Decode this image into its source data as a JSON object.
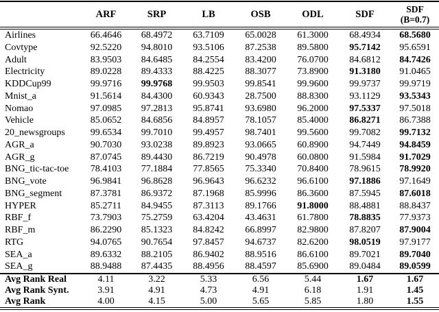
{
  "table": {
    "columns": [
      "ARF",
      "SRP",
      "LB",
      "OSB",
      "ODL",
      "SDF"
    ],
    "last_column": {
      "line1": "SDF",
      "line2": "(B=0.7)"
    },
    "rows": [
      {
        "label": "Airlines",
        "values": [
          "66.4646",
          "68.4972",
          "63.7109",
          "65.0028",
          "61.3000",
          "68.4934",
          "68.5680"
        ],
        "bold": [
          6
        ]
      },
      {
        "label": "Covtype",
        "values": [
          "92.5220",
          "94.8010",
          "93.5106",
          "87.2538",
          "89.5800",
          "95.7142",
          "95.6591"
        ],
        "bold": [
          5
        ]
      },
      {
        "label": "Adult",
        "values": [
          "83.9503",
          "84.6485",
          "84.2554",
          "83.4200",
          "76.0700",
          "84.6812",
          "84.7426"
        ],
        "bold": [
          6
        ]
      },
      {
        "label": "Electricity",
        "values": [
          "89.0228",
          "89.4333",
          "88.4225",
          "88.3077",
          "73.8900",
          "91.3180",
          "91.0465"
        ],
        "bold": [
          5
        ]
      },
      {
        "label": "KDDCup99",
        "values": [
          "99.9716",
          "99.9768",
          "99.9503",
          "99.8541",
          "99.9600",
          "99.9737",
          "99.9719"
        ],
        "bold": [
          1
        ]
      },
      {
        "label": "Mnist_a",
        "values": [
          "91.5614",
          "84.4300",
          "60.9343",
          "28.7500",
          "88.8300",
          "93.1129",
          "93.5343"
        ],
        "bold": [
          6
        ]
      },
      {
        "label": "Nomao",
        "values": [
          "97.0985",
          "97.2813",
          "95.8741",
          "93.6980",
          "96.2000",
          "97.5337",
          "97.5018"
        ],
        "bold": [
          5
        ]
      },
      {
        "label": "Vehicle",
        "values": [
          "85.0652",
          "84.6856",
          "84.8957",
          "78.1057",
          "85.4000",
          "86.8271",
          "86.7388"
        ],
        "bold": [
          5
        ]
      },
      {
        "label": "20_newsgroups",
        "values": [
          "99.6534",
          "99.7010",
          "99.4957",
          "98.7401",
          "99.5600",
          "99.7082",
          "99.7132"
        ],
        "bold": [
          6
        ]
      },
      {
        "label": "AGR_a",
        "values": [
          "90.7030",
          "93.0238",
          "89.8923",
          "93.0665",
          "60.8900",
          "94.7449",
          "94.8459"
        ],
        "bold": [
          6
        ]
      },
      {
        "label": "AGR_g",
        "values": [
          "87.0745",
          "89.4430",
          "86.7219",
          "90.4978",
          "60.0800",
          "91.5984",
          "91.7029"
        ],
        "bold": [
          6
        ]
      },
      {
        "label": "BNG_tic-tac-toe",
        "values": [
          "78.4103",
          "77.1884",
          "77.8565",
          "75.3340",
          "70.8400",
          "78.9615",
          "78.9920"
        ],
        "bold": [
          6
        ]
      },
      {
        "label": "BNG_vote",
        "values": [
          "96.9841",
          "96.8628",
          "96.9643",
          "96.6232",
          "96.6100",
          "97.1886",
          "97.1649"
        ],
        "bold": [
          5
        ]
      },
      {
        "label": "BNG_segment",
        "values": [
          "87.3781",
          "86.9372",
          "87.1968",
          "85.9996",
          "86.3600",
          "87.5945",
          "87.6018"
        ],
        "bold": [
          6
        ]
      },
      {
        "label": "HYPER",
        "values": [
          "85.2711",
          "84.9455",
          "87.3113",
          "89.1766",
          "91.8000",
          "88.4881",
          "88.8437"
        ],
        "bold": [
          4
        ]
      },
      {
        "label": "RBF_f",
        "values": [
          "73.7903",
          "75.2759",
          "63.4204",
          "43.4631",
          "61.7800",
          "78.8835",
          "77.9373"
        ],
        "bold": [
          5
        ]
      },
      {
        "label": "RBF_m",
        "values": [
          "86.2290",
          "85.1323",
          "84.8242",
          "66.8997",
          "82.9800",
          "87.8207",
          "87.9004"
        ],
        "bold": [
          6
        ]
      },
      {
        "label": "RTG",
        "values": [
          "94.0765",
          "90.7654",
          "97.8457",
          "94.6737",
          "82.6200",
          "98.0519",
          "97.9177"
        ],
        "bold": [
          5
        ]
      },
      {
        "label": "SEA_a",
        "values": [
          "89.6332",
          "88.2105",
          "86.9402",
          "88.9516",
          "86.6100",
          "89.7021",
          "89.7040"
        ],
        "bold": [
          6
        ]
      },
      {
        "label": "SEA_g",
        "values": [
          "88.9488",
          "87.4435",
          "88.4956",
          "88.4597",
          "85.6900",
          "89.0484",
          "89.0599"
        ],
        "bold": [
          6
        ]
      }
    ],
    "summary_rows": [
      {
        "label": "Avg Rank Real",
        "values": [
          "4.11",
          "3.22",
          "5.33",
          "6.56",
          "5.44",
          "1.67",
          "1.67"
        ],
        "bold": [
          5,
          6
        ]
      },
      {
        "label": "Avg Rank Synt.",
        "values": [
          "3.91",
          "4.91",
          "4.73",
          "4.91",
          "6.18",
          "1.91",
          "1.45"
        ],
        "bold": [
          6
        ]
      },
      {
        "label": "Avg Rank",
        "values": [
          "4.00",
          "4.15",
          "5.00",
          "5.65",
          "5.85",
          "1.80",
          "1.55"
        ],
        "bold": [
          6
        ]
      }
    ]
  }
}
